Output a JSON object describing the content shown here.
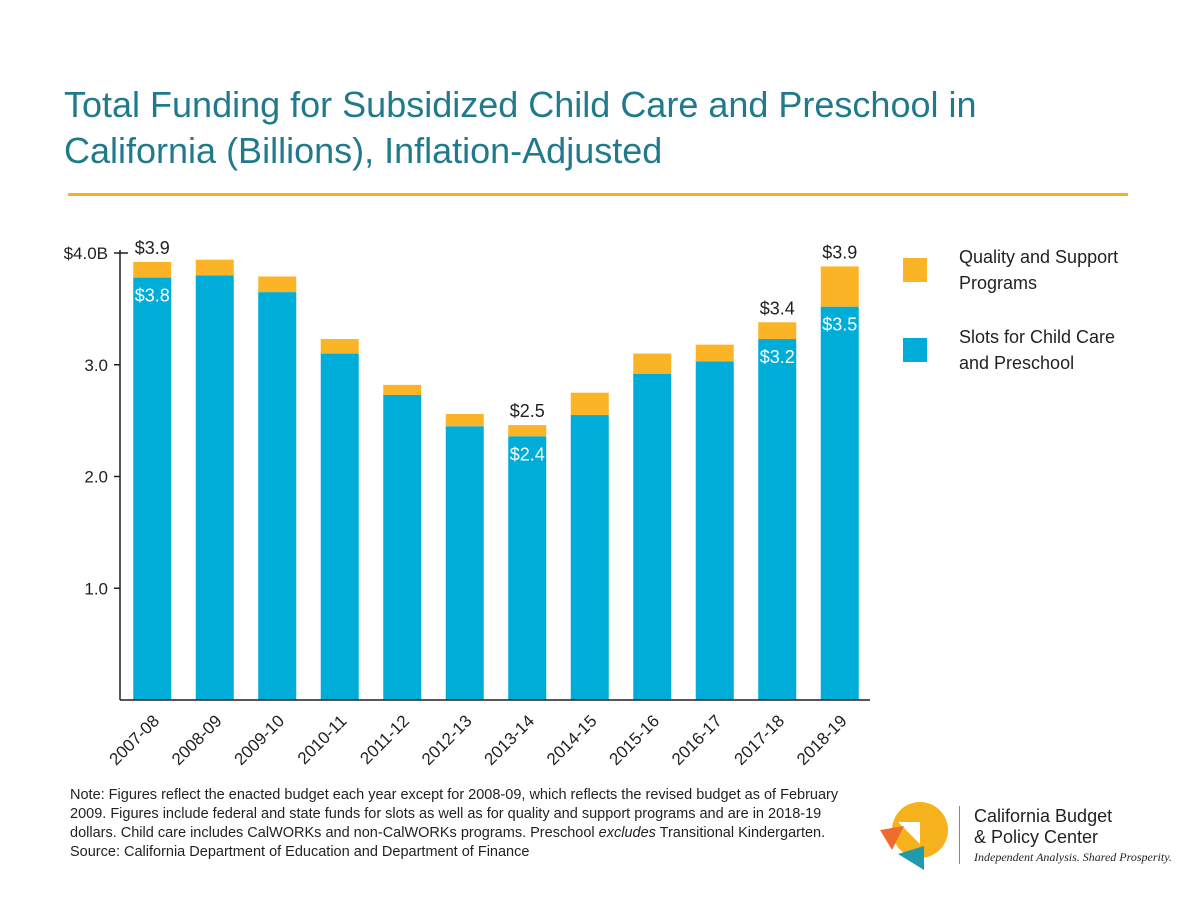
{
  "title": "Total Funding for Subsidized Child Care and Preschool in California (Billions), Inflation-Adjusted",
  "colors": {
    "title": "#1f7a8c",
    "rule": "#f5b21d",
    "slots": "#00acd8",
    "quality": "#fbb426"
  },
  "legend": [
    {
      "label_line1": "Quality and Support",
      "label_line2": "Programs",
      "color": "#fbb426"
    },
    {
      "label_line1": "Slots for Child Care",
      "label_line2": "and Preschool",
      "color": "#00acd8"
    }
  ],
  "chart_data": {
    "type": "bar",
    "stacked": true,
    "categories": [
      "2007-08",
      "2008-09",
      "2009-10",
      "2010-11",
      "2011-12",
      "2012-13",
      "2013-14",
      "2014-15",
      "2015-16",
      "2016-17",
      "2017-18",
      "2018-19"
    ],
    "series": [
      {
        "name": "Slots for Child Care and Preschool",
        "color": "#00acd8",
        "values": [
          3.78,
          3.8,
          3.65,
          3.1,
          2.73,
          2.45,
          2.36,
          2.55,
          2.92,
          3.03,
          3.23,
          3.52
        ]
      },
      {
        "name": "Quality and Support Programs",
        "color": "#fbb426",
        "values": [
          0.14,
          0.14,
          0.14,
          0.13,
          0.09,
          0.11,
          0.1,
          0.2,
          0.18,
          0.15,
          0.15,
          0.36
        ]
      }
    ],
    "yticks": [
      {
        "value": 4.0,
        "label": "$4.0B"
      },
      {
        "value": 3.0,
        "label": "3.0"
      },
      {
        "value": 2.0,
        "label": "2.0"
      },
      {
        "value": 1.0,
        "label": "1.0"
      }
    ],
    "ylim": [
      0,
      4.0
    ],
    "annotations": [
      {
        "category_index": 0,
        "total_label": "$3.9",
        "slots_label": "$3.8"
      },
      {
        "category_index": 6,
        "total_label": "$2.5",
        "slots_label": "$2.4"
      },
      {
        "category_index": 10,
        "total_label": "$3.4",
        "slots_label": "$3.2"
      },
      {
        "category_index": 11,
        "total_label": "$3.9",
        "slots_label": "$3.5"
      }
    ]
  },
  "note": {
    "line_before_italic": "Note: Figures reflect the enacted budget each year except for 2008-09, which reflects the revised budget as of February 2009. Figures include federal and state funds for slots as well as for quality and support programs and are in 2018-19 dollars. Child care includes CalWORKs and non-CalWORKs programs. Preschool ",
    "italic": "excludes",
    "line_after_italic": " Transitional Kindergarten.",
    "source": "Source: California Department of Education and Department of Finance"
  },
  "logo": {
    "name_line1": "California Budget",
    "name_line2": "& Policy Center",
    "tagline": "Independent Analysis. Shared Prosperity.",
    "colors": {
      "yellow": "#f5b21d",
      "orange": "#ef6c2e",
      "teal": "#1f9bab"
    }
  }
}
